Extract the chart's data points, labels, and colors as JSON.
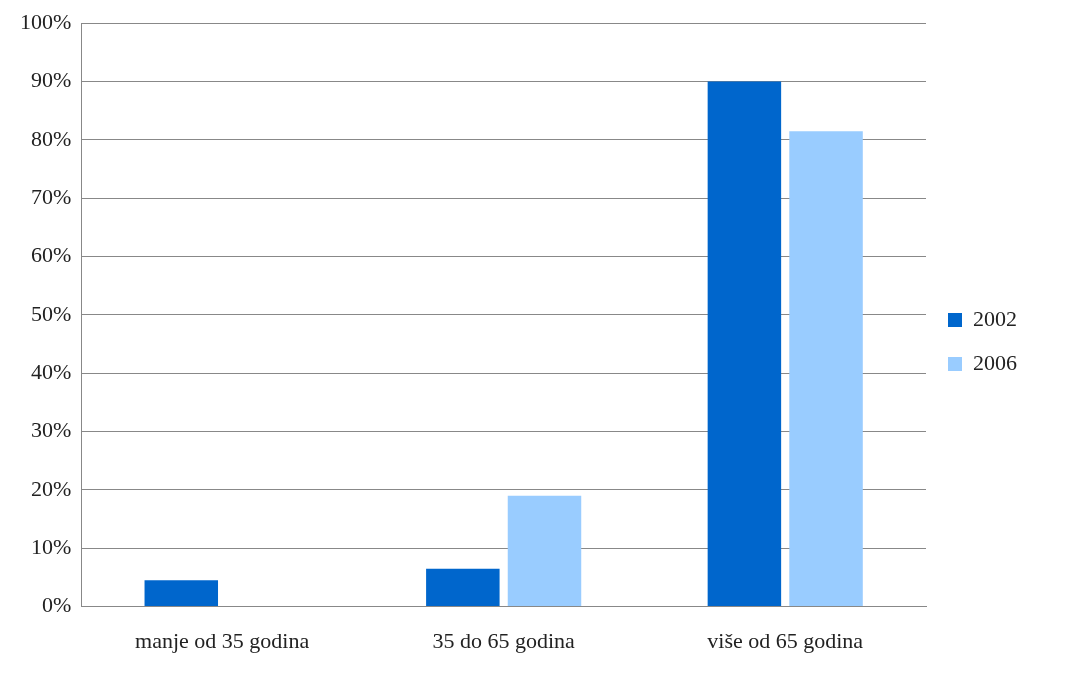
{
  "chart_data": {
    "type": "bar",
    "categories": [
      "manje od 35 godina",
      "35 do 65 godina",
      "više od 65 godina"
    ],
    "series": [
      {
        "name": "2002",
        "color": "#0066cc",
        "values": [
          4.5,
          6.5,
          90
        ]
      },
      {
        "name": "2006",
        "color": "#99ccff",
        "values": [
          0,
          19,
          81.5
        ]
      }
    ],
    "ylim": [
      0,
      100
    ],
    "yticks": [
      {
        "value": 0,
        "label": "0%"
      },
      {
        "value": 10,
        "label": "10%"
      },
      {
        "value": 20,
        "label": "20%"
      },
      {
        "value": 30,
        "label": "30%"
      },
      {
        "value": 40,
        "label": "40%"
      },
      {
        "value": 50,
        "label": "50%"
      },
      {
        "value": 60,
        "label": "60%"
      },
      {
        "value": 70,
        "label": "70%"
      },
      {
        "value": 80,
        "label": "80%"
      },
      {
        "value": 90,
        "label": "90%"
      },
      {
        "value": 100,
        "label": "100%"
      }
    ],
    "grid": "y",
    "legend": "right"
  }
}
